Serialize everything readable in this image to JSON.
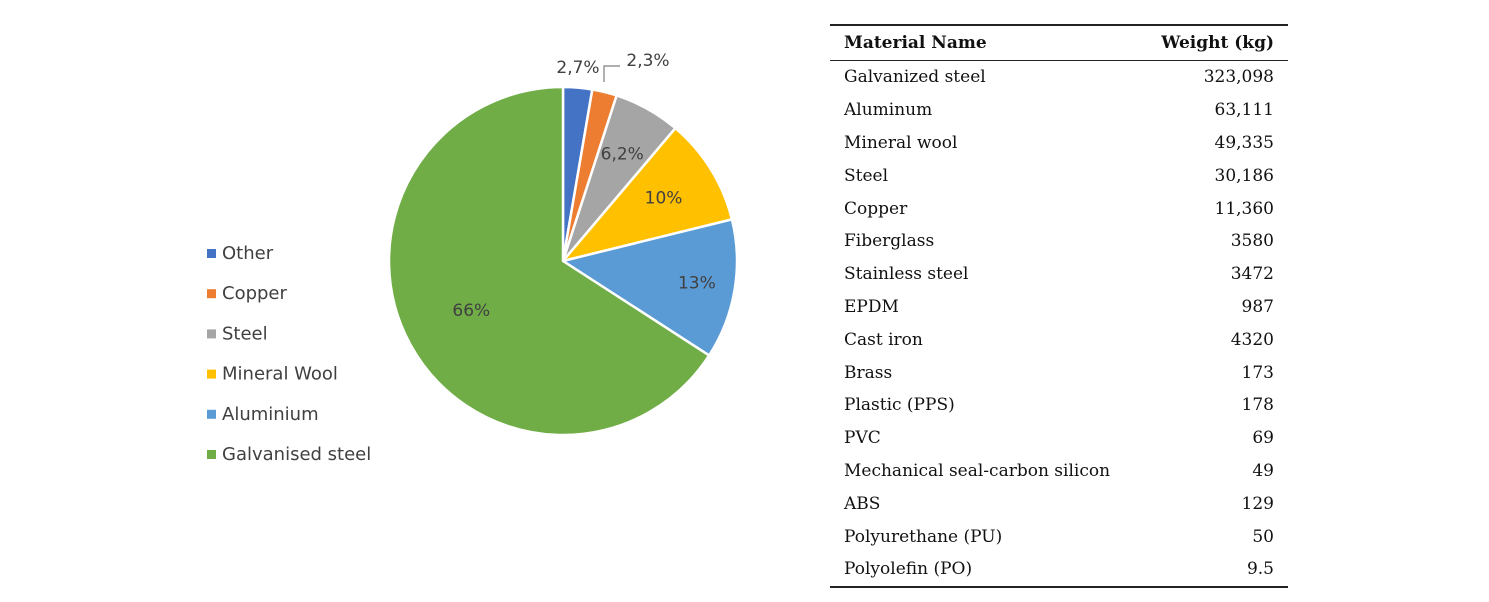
{
  "chart_data": {
    "type": "pie",
    "slices": [
      {
        "name": "Other",
        "value": 2.7,
        "label": "2,7%",
        "color": "#4472C4"
      },
      {
        "name": "Copper",
        "value": 2.3,
        "label": "2,3%",
        "color": "#ED7D31"
      },
      {
        "name": "Steel",
        "value": 6.2,
        "label": "6,2%",
        "color": "#A5A5A5"
      },
      {
        "name": "Mineral Wool",
        "value": 10,
        "label": "10%",
        "color": "#FFC000"
      },
      {
        "name": "Aluminium",
        "value": 13,
        "label": "13%",
        "color": "#5B9BD5"
      },
      {
        "name": "Galvanised steel",
        "value": 66,
        "label": "66%",
        "color": "#70AD47"
      }
    ],
    "legend": [
      "Other",
      "Copper",
      "Steel",
      "Mineral Wool",
      "Aluminium",
      "Galvanised steel"
    ],
    "legend_position": "left"
  },
  "table": {
    "headers": [
      "Material Name",
      "Weight (kg)"
    ],
    "rows": [
      [
        "Galvanized steel",
        "323,098"
      ],
      [
        "Aluminum",
        "63,111"
      ],
      [
        "Mineral wool",
        "49,335"
      ],
      [
        "Steel",
        "30,186"
      ],
      [
        "Copper",
        "11,360"
      ],
      [
        "Fiberglass",
        "3580"
      ],
      [
        "Stainless steel",
        "3472"
      ],
      [
        "EPDM",
        "987"
      ],
      [
        "Cast iron",
        "4320"
      ],
      [
        "Brass",
        "173"
      ],
      [
        "Plastic (PPS)",
        "178"
      ],
      [
        "PVC",
        "69"
      ],
      [
        "Mechanical seal-carbon silicon",
        "49"
      ],
      [
        "ABS",
        "129"
      ],
      [
        "Polyurethane (PU)",
        "50"
      ],
      [
        "Polyolefin (PO)",
        "9.5"
      ]
    ]
  }
}
